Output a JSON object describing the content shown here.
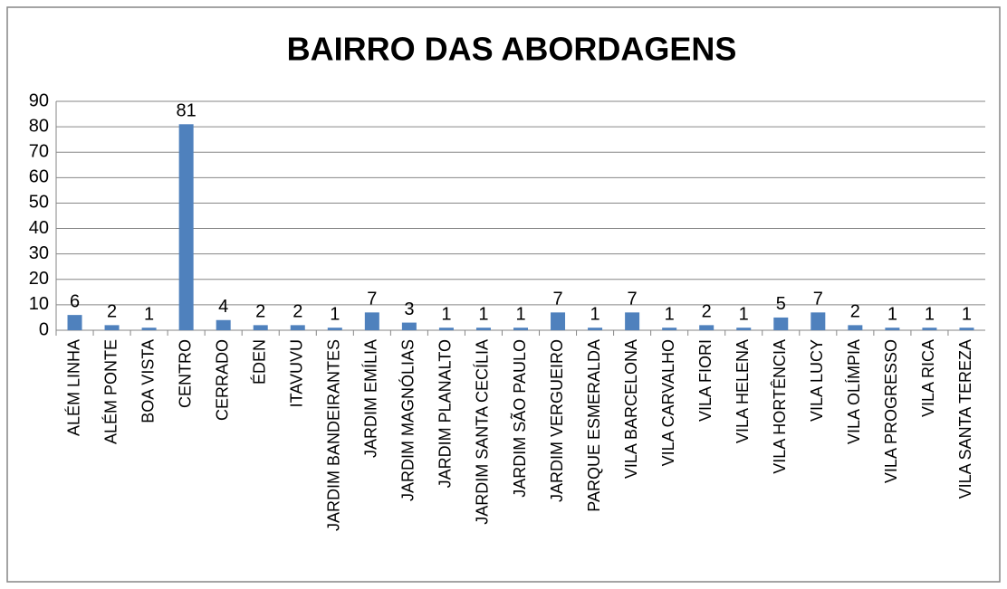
{
  "chart_data": {
    "type": "bar",
    "title": "BAIRRO DAS ABORDAGENS",
    "categories": [
      "ALÉM LINHA",
      "ALÉM PONTE",
      "BOA VISTA",
      "CENTRO",
      "CERRADO",
      "ÉDEN",
      "ITAVUVU",
      "JARDIM BANDEIRANTES",
      "JARDIM EMÍLIA",
      "JARDIM MAGNÓLIAS",
      "JARDIM PLANALTO",
      "JARDIM SANTA CECÍLIA",
      "JARDIM SÃO PAULO",
      "JARDIM VERGUEIRO",
      "PARQUE ESMERALDA",
      "VILA BARCELONA",
      "VILA CARVALHO",
      "VILA FIORI",
      "VILA HELENA",
      "VILA HORTÊNCIA",
      "VILA LUCY",
      "VILA OLÍMPIA",
      "VILA PROGRESSO",
      "VILA RICA",
      "VILA SANTA TEREZA"
    ],
    "values": [
      6,
      2,
      1,
      81,
      4,
      2,
      2,
      1,
      7,
      3,
      1,
      1,
      1,
      7,
      1,
      7,
      1,
      2,
      1,
      5,
      7,
      2,
      1,
      1,
      1
    ],
    "color": "#4f81bd",
    "ylim": [
      0,
      90
    ],
    "yticks": [
      0,
      10,
      20,
      30,
      40,
      50,
      60,
      70,
      80,
      90
    ],
    "grid": true
  }
}
